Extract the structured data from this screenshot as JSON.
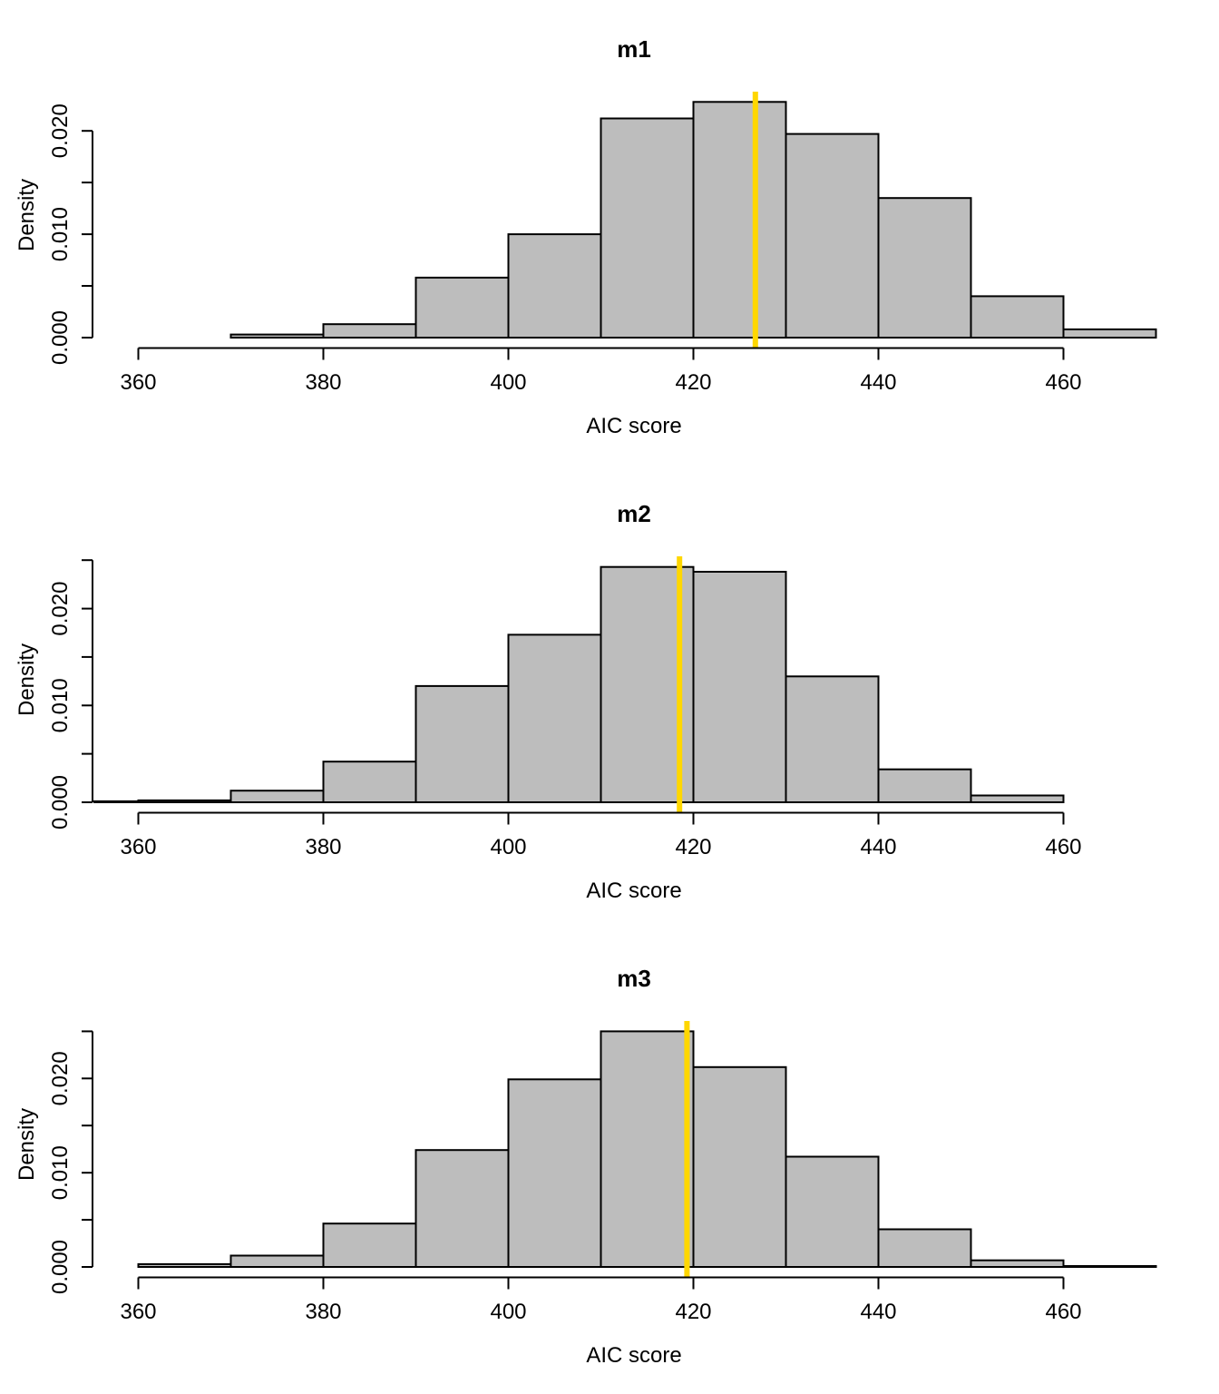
{
  "figure": {
    "background": "#ffffff"
  },
  "chart_data": [
    {
      "type": "bar",
      "subtype": "histogram",
      "title": "m1",
      "xlabel": "AIC score",
      "ylabel": "Density",
      "bin_start": 370,
      "bin_width": 10,
      "densities": [
        0.0003,
        0.0013,
        0.0058,
        0.01,
        0.0212,
        0.0228,
        0.0197,
        0.0135,
        0.004,
        0.0008
      ],
      "x_ticks": [
        360,
        380,
        400,
        420,
        440,
        460
      ],
      "y_ticks": [
        {
          "value": 0.0,
          "label": "0.000"
        },
        {
          "value": 0.005,
          "label": ""
        },
        {
          "value": 0.01,
          "label": "0.010"
        },
        {
          "value": 0.015,
          "label": ""
        },
        {
          "value": 0.02,
          "label": "0.020"
        }
      ],
      "vline_x": 426.7,
      "xlim": [
        355,
        472
      ],
      "ylim": [
        0,
        0.0237
      ],
      "grid": false,
      "legend": null,
      "colors": {
        "bar_fill": "#bdbdbd",
        "bar_border": "#000000",
        "marker_line": "#ffd700",
        "text": "#000000"
      }
    },
    {
      "type": "bar",
      "subtype": "histogram",
      "title": "m2",
      "xlabel": "AIC score",
      "ylabel": "Density",
      "bin_start": 350,
      "bin_width": 10,
      "densities": [
        0.0001,
        0.0002,
        0.0012,
        0.0042,
        0.012,
        0.0173,
        0.0243,
        0.0238,
        0.013,
        0.0034,
        0.0007
      ],
      "x_ticks": [
        360,
        380,
        400,
        420,
        440,
        460
      ],
      "y_ticks": [
        {
          "value": 0.0,
          "label": "0.000"
        },
        {
          "value": 0.005,
          "label": ""
        },
        {
          "value": 0.01,
          "label": "0.010"
        },
        {
          "value": 0.015,
          "label": ""
        },
        {
          "value": 0.02,
          "label": "0.020"
        },
        {
          "value": 0.025,
          "label": ""
        }
      ],
      "vline_x": 418.5,
      "xlim": [
        355,
        472
      ],
      "ylim": [
        0,
        0.0253
      ],
      "grid": false,
      "legend": null,
      "colors": {
        "bar_fill": "#bdbdbd",
        "bar_border": "#000000",
        "marker_line": "#ffd700",
        "text": "#000000"
      }
    },
    {
      "type": "bar",
      "subtype": "histogram",
      "title": "m3",
      "xlabel": "AIC score",
      "ylabel": "Density",
      "bin_start": 360,
      "bin_width": 10,
      "densities": [
        0.0003,
        0.0012,
        0.0046,
        0.0124,
        0.0199,
        0.025,
        0.0212,
        0.0117,
        0.004,
        0.0007,
        0.0001
      ],
      "x_ticks": [
        360,
        380,
        400,
        420,
        440,
        460
      ],
      "y_ticks": [
        {
          "value": 0.0,
          "label": "0.000"
        },
        {
          "value": 0.005,
          "label": ""
        },
        {
          "value": 0.01,
          "label": "0.010"
        },
        {
          "value": 0.015,
          "label": ""
        },
        {
          "value": 0.02,
          "label": "0.020"
        },
        {
          "value": 0.025,
          "label": ""
        }
      ],
      "vline_x": 419.3,
      "xlim": [
        355,
        472
      ],
      "ylim": [
        0,
        0.026
      ],
      "grid": false,
      "legend": null,
      "colors": {
        "bar_fill": "#bdbdbd",
        "bar_border": "#000000",
        "marker_line": "#ffd700",
        "text": "#000000"
      }
    }
  ]
}
